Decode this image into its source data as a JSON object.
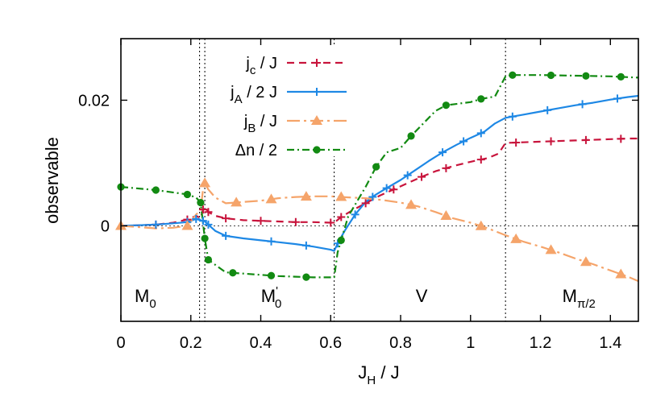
{
  "chart_data": {
    "type": "line",
    "xlabel": "J",
    "xlabel_sub": "H",
    "xlabel_tail": " / J",
    "ylabel": "observable",
    "xlim": [
      0,
      1.48
    ],
    "ylim": [
      -0.0152,
      0.0298
    ],
    "x_ticks": [
      0,
      0.2,
      0.4,
      0.6,
      0.8,
      1,
      1.2,
      1.4
    ],
    "x_tick_labels": [
      "0",
      "0.2",
      "0.4",
      "0.6",
      "0.8",
      "1",
      "1.2",
      "1.4"
    ],
    "y_ticks": [
      0,
      0.02
    ],
    "y_tick_labels": [
      "0",
      "0.02"
    ],
    "grid": false,
    "legend_position": "top-center",
    "phase_boundaries": [
      0.225,
      0.24,
      0.61,
      1.1
    ],
    "zero_line": true,
    "region_labels": [
      {
        "main": "M",
        "sub": "0",
        "sup": "",
        "x": 0.07
      },
      {
        "main": "M",
        "sub": "0",
        "sup": "'",
        "x": 0.43
      },
      {
        "main": "V",
        "sub": "",
        "sup": "",
        "x": 0.86
      },
      {
        "main": "M",
        "sub": "π/2",
        "sup": "",
        "x": 1.31
      }
    ],
    "series": [
      {
        "name": "j",
        "name_sub": "c",
        "name_tail": " / J",
        "color": "#c8143c",
        "dash": "9,6",
        "marker": "plus",
        "x": [
          0,
          0.05,
          0.1,
          0.15,
          0.19,
          0.215,
          0.228,
          0.235,
          0.24,
          0.25,
          0.27,
          0.3,
          0.35,
          0.4,
          0.45,
          0.5,
          0.55,
          0.6,
          0.61,
          0.63,
          0.66,
          0.7,
          0.74,
          0.78,
          0.82,
          0.86,
          0.9,
          0.95,
          1.0,
          1.05,
          1.08,
          1.1,
          1.15,
          1.2,
          1.25,
          1.3,
          1.35,
          1.4,
          1.45,
          1.48
        ],
        "y": [
          0,
          0.0001,
          0.0002,
          0.0005,
          0.001,
          0.0016,
          0.0012,
          0.0026,
          0.003,
          0.0022,
          0.0016,
          0.0012,
          0.0009,
          0.0008,
          0.0007,
          0.0006,
          0.0006,
          0.0005,
          0.0005,
          0.0014,
          0.0024,
          0.0036,
          0.0048,
          0.0058,
          0.0068,
          0.0078,
          0.0087,
          0.0095,
          0.0102,
          0.0108,
          0.0115,
          0.0132,
          0.0133,
          0.0134,
          0.0135,
          0.0136,
          0.0137,
          0.0138,
          0.0139,
          0.0139
        ],
        "marker_x": [
          0.1,
          0.19,
          0.235,
          0.25,
          0.3,
          0.4,
          0.5,
          0.6,
          0.63,
          0.7,
          0.78,
          0.86,
          0.93,
          1.03,
          1.13,
          1.23,
          1.33,
          1.43
        ]
      },
      {
        "name": "j",
        "name_sub": "A",
        "name_tail": " / 2 J",
        "color": "#1e88e5",
        "dash": "",
        "marker": "plus",
        "x": [
          0,
          0.05,
          0.1,
          0.15,
          0.19,
          0.215,
          0.228,
          0.235,
          0.24,
          0.25,
          0.27,
          0.3,
          0.35,
          0.4,
          0.45,
          0.5,
          0.55,
          0.6,
          0.61,
          0.62,
          0.64,
          0.67,
          0.7,
          0.73,
          0.76,
          0.8,
          0.84,
          0.88,
          0.92,
          0.96,
          1.0,
          1.04,
          1.07,
          1.1,
          1.15,
          1.2,
          1.25,
          1.3,
          1.35,
          1.4,
          1.45,
          1.48
        ],
        "y": [
          0,
          0.0001,
          0.0002,
          0.0004,
          0.0006,
          0.0011,
          0.0009,
          0.0008,
          0.0007,
          0.0002,
          -0.0008,
          -0.0016,
          -0.002,
          -0.0023,
          -0.0026,
          -0.0029,
          -0.0033,
          -0.0038,
          -0.004,
          -0.0028,
          -0.0008,
          0.0018,
          0.0038,
          0.005,
          0.006,
          0.0073,
          0.0088,
          0.0103,
          0.0117,
          0.0129,
          0.014,
          0.015,
          0.0163,
          0.0172,
          0.0177,
          0.0182,
          0.0187,
          0.0192,
          0.0196,
          0.0201,
          0.0205,
          0.0207
        ],
        "marker_x": [
          0.1,
          0.19,
          0.215,
          0.235,
          0.25,
          0.3,
          0.43,
          0.53,
          0.62,
          0.67,
          0.72,
          0.76,
          0.82,
          0.92,
          0.98,
          1.03,
          1.12,
          1.22,
          1.32,
          1.42
        ]
      },
      {
        "name": "j",
        "name_sub": "B",
        "name_tail": " / J",
        "color": "#f5a46a",
        "dash": "16,5,3,5",
        "marker": "triangle",
        "x": [
          0,
          0.05,
          0.1,
          0.15,
          0.19,
          0.215,
          0.228,
          0.235,
          0.24,
          0.25,
          0.27,
          0.3,
          0.35,
          0.4,
          0.45,
          0.5,
          0.55,
          0.6,
          0.63,
          0.66,
          0.7,
          0.75,
          0.8,
          0.85,
          0.9,
          0.95,
          1.0,
          1.05,
          1.1,
          1.15,
          1.2,
          1.25,
          1.3,
          1.35,
          1.4,
          1.45,
          1.48
        ],
        "y": [
          0,
          -0.0002,
          -0.0004,
          -0.0003,
          0,
          0.0018,
          0.0025,
          0.0058,
          0.0068,
          0.0058,
          0.0045,
          0.0036,
          0.0038,
          0.004,
          0.0044,
          0.0046,
          0.0047,
          0.0047,
          0.0046,
          0.0045,
          0.0044,
          0.0041,
          0.0037,
          0.0031,
          0.0022,
          0.0012,
          0.0005,
          -0.0004,
          -0.0015,
          -0.0025,
          -0.0033,
          -0.0042,
          -0.0052,
          -0.0061,
          -0.0071,
          -0.0081,
          -0.0088
        ],
        "marker_x": [
          0,
          0.19,
          0.24,
          0.33,
          0.43,
          0.53,
          0.63,
          0.83,
          0.93,
          1.03,
          1.13,
          1.23,
          1.33,
          1.43
        ]
      },
      {
        "name": "Δn / 2",
        "name_sub": "",
        "name_tail": "",
        "color": "#128a12",
        "dash": "9,4,2,4",
        "marker": "circle",
        "x": [
          0,
          0.1,
          0.19,
          0.215,
          0.228,
          0.24,
          0.25,
          0.3,
          0.35,
          0.4,
          0.45,
          0.5,
          0.55,
          0.6,
          0.61,
          0.62,
          0.65,
          0.7,
          0.73,
          0.76,
          0.8,
          0.83,
          0.87,
          0.9,
          0.93,
          1.0,
          1.03,
          1.07,
          1.1,
          1.12,
          1.2,
          1.3,
          1.4,
          1.48
        ],
        "y": [
          0.0062,
          0.0057,
          0.005,
          0.0045,
          0.0037,
          -0.002,
          -0.0054,
          -0.0074,
          -0.0076,
          -0.0078,
          -0.008,
          -0.0081,
          -0.0082,
          -0.0082,
          -0.0082,
          -0.0042,
          0.0015,
          0.0062,
          0.0094,
          0.0117,
          0.0124,
          0.0143,
          0.0166,
          0.0183,
          0.0192,
          0.0197,
          0.0202,
          0.0206,
          0.0238,
          0.024,
          0.024,
          0.0239,
          0.0238,
          0.0236
        ],
        "marker_x": [
          0,
          0.1,
          0.19,
          0.228,
          0.24,
          0.25,
          0.32,
          0.43,
          0.53,
          0.63,
          0.73,
          0.83,
          0.93,
          1.03,
          1.12,
          1.23,
          1.33,
          1.43
        ]
      }
    ]
  }
}
